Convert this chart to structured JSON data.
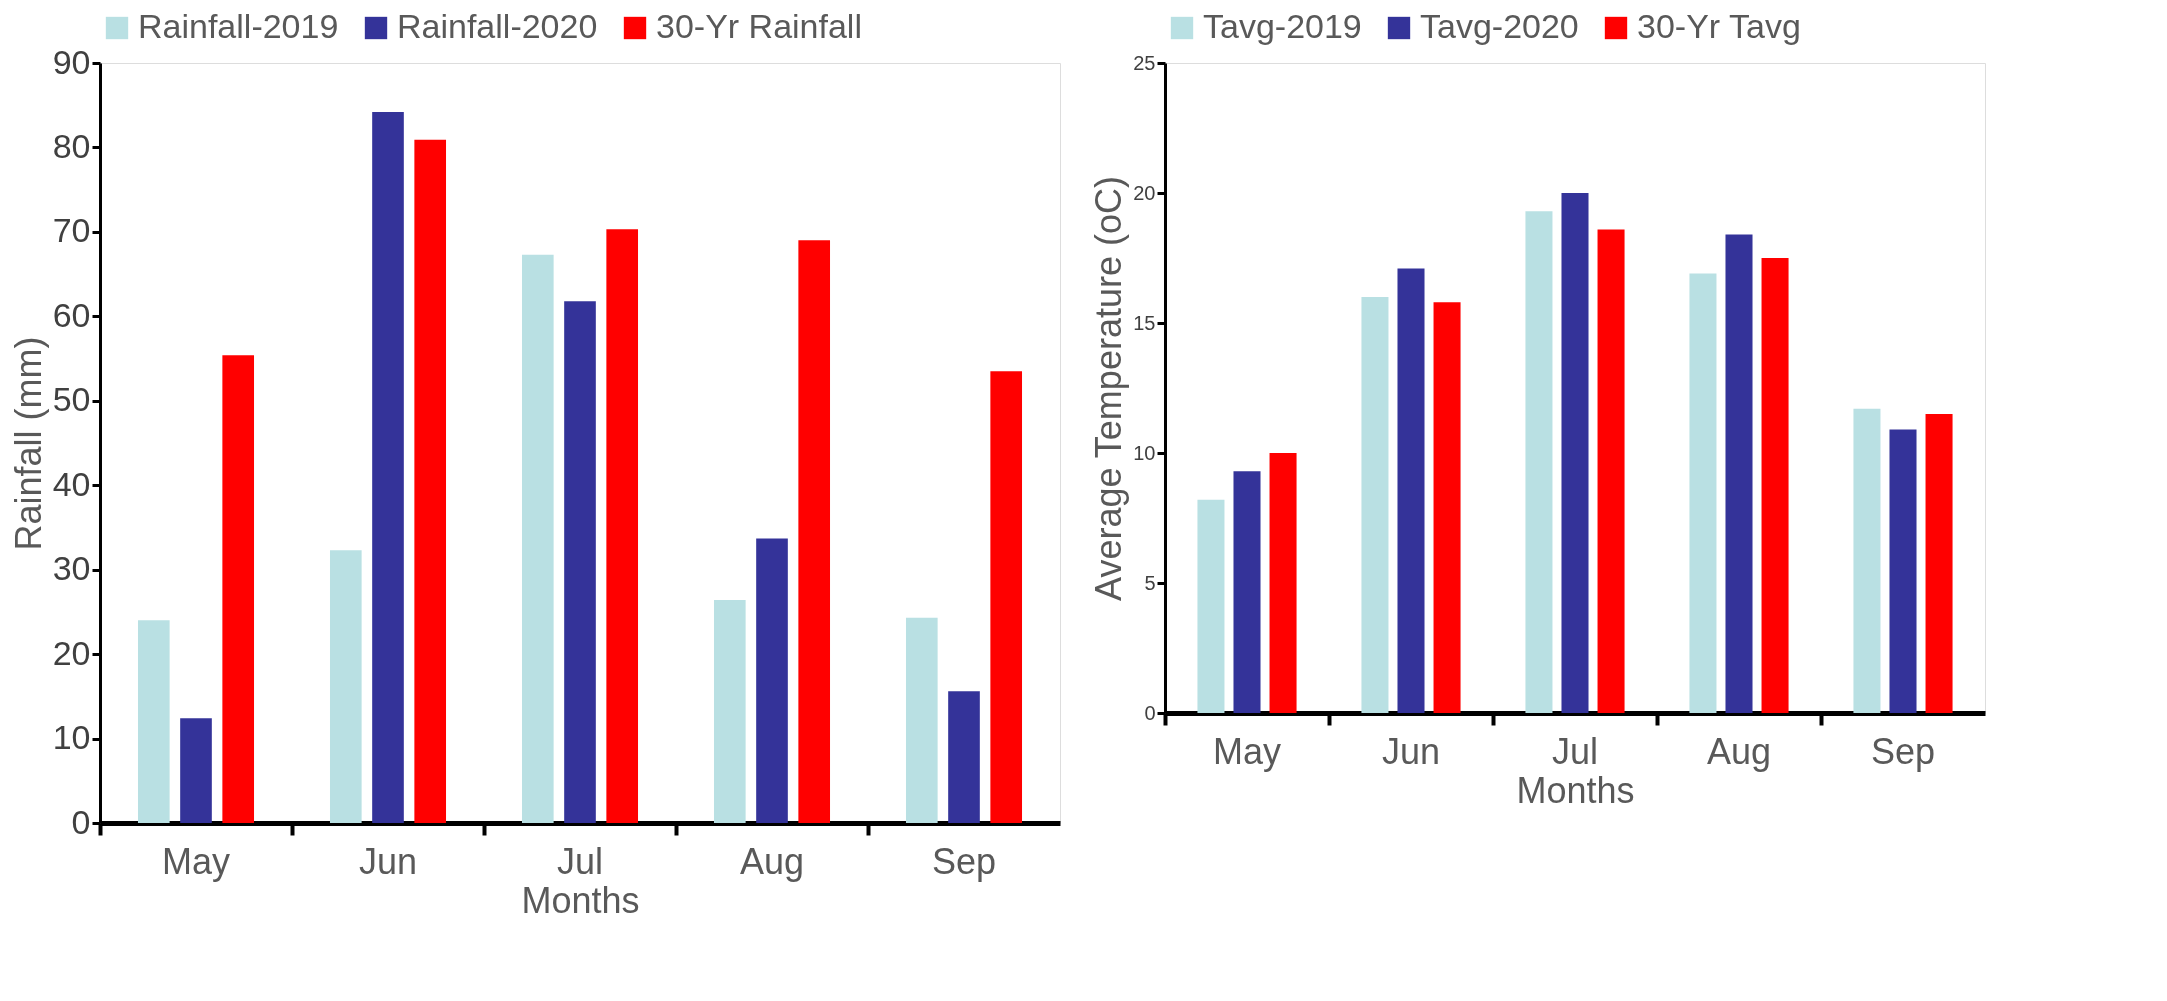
{
  "chart_data": [
    {
      "type": "bar",
      "categories": [
        "May",
        "Jun",
        "Jul",
        "Aug",
        "Sep"
      ],
      "xlabel": "Months",
      "ylabel": "Rainfall (mm)",
      "ylim": [
        0,
        90
      ],
      "yticks": [
        0,
        10,
        20,
        30,
        40,
        50,
        60,
        70,
        80,
        90
      ],
      "grid": false,
      "legend": "top",
      "series": [
        {
          "name": "Rainfall-2019",
          "color": "#b9e0e3",
          "values": [
            24.0,
            32.3,
            67.3,
            26.4,
            24.3
          ]
        },
        {
          "name": "Rainfall-2020",
          "color": "#343399",
          "values": [
            12.4,
            84.2,
            61.8,
            33.7,
            15.6
          ]
        },
        {
          "name": "30-Yr Rainfall",
          "color": "#ff0000",
          "values": [
            55.4,
            80.9,
            70.3,
            69.0,
            53.5
          ]
        }
      ]
    },
    {
      "type": "bar",
      "categories": [
        "May",
        "Jun",
        "Jul",
        "Aug",
        "Sep"
      ],
      "xlabel": "Months",
      "ylabel": "Average Temperature (oC)",
      "ylim": [
        0,
        25
      ],
      "yticks": [
        0,
        5,
        10,
        15,
        20,
        25
      ],
      "grid": false,
      "legend": "top",
      "series": [
        {
          "name": "Tavg-2019",
          "color": "#b9e0e3",
          "values": [
            8.2,
            16.0,
            19.3,
            16.9,
            11.7
          ]
        },
        {
          "name": "Tavg-2020",
          "color": "#343399",
          "values": [
            9.3,
            17.1,
            20.0,
            18.4,
            10.9
          ]
        },
        {
          "name": "30-Yr Tavg",
          "color": "#ff0000",
          "values": [
            10.0,
            15.8,
            18.6,
            17.5,
            11.5
          ]
        }
      ]
    }
  ]
}
